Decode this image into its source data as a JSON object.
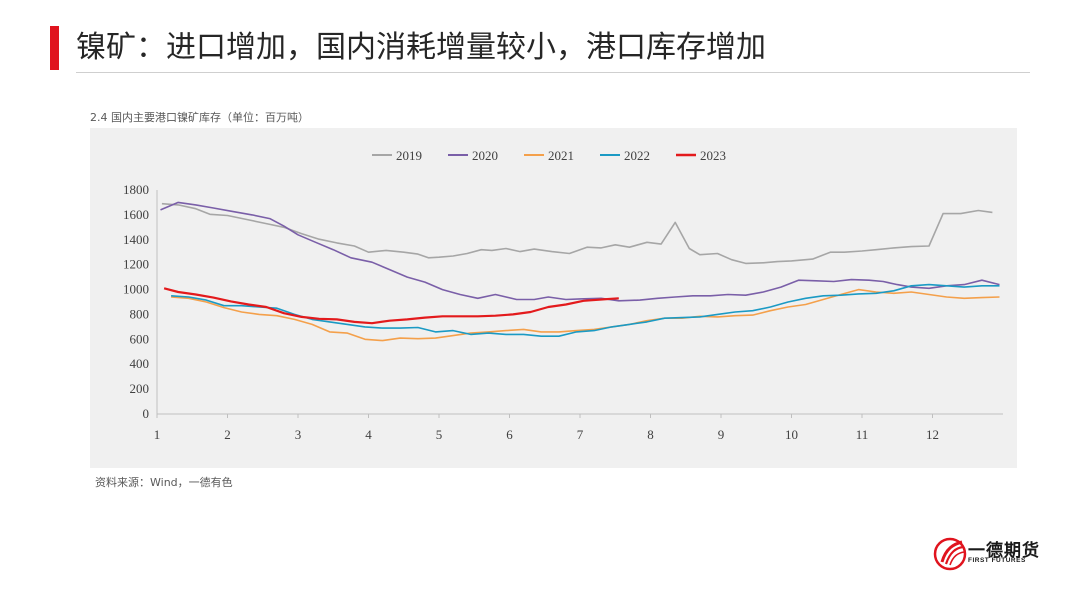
{
  "slide": {
    "title": "镍矿：进口增加，国内消耗增量较小，港口库存增加",
    "chart_caption": "2.4 国内主要港口镍矿库存（单位：百万吨）",
    "source": "资料来源：Wind，一德有色",
    "logo": {
      "name": "一德期货",
      "sub": "FIRST FUTURES"
    }
  },
  "chart_data": {
    "type": "line",
    "title": "2.4 国内主要港口镍矿库存（单位：百万吨）",
    "xlabel": "",
    "ylabel": "",
    "xlim": [
      1,
      13
    ],
    "ylim": [
      0,
      1800
    ],
    "x_ticks": [
      1,
      2,
      3,
      4,
      5,
      6,
      7,
      8,
      9,
      10,
      11,
      12
    ],
    "y_ticks": [
      0,
      200,
      400,
      600,
      800,
      1000,
      1200,
      1400,
      1600,
      1800
    ],
    "legend_position": "top-center",
    "grid": false,
    "series": [
      {
        "name": "2019",
        "color": "#a6a6a6",
        "x": [
          1.07,
          1.3,
          1.55,
          1.75,
          2,
          2.3,
          2.55,
          2.8,
          3.05,
          3.3,
          3.55,
          3.8,
          4,
          4.25,
          4.5,
          4.7,
          4.85,
          5,
          5.2,
          5.4,
          5.6,
          5.75,
          5.95,
          6.15,
          6.35,
          6.6,
          6.85,
          7.1,
          7.3,
          7.5,
          7.7,
          7.95,
          8.15,
          8.35,
          8.55,
          8.7,
          8.95,
          9.15,
          9.35,
          9.6,
          9.8,
          10.0,
          10.3,
          10.55,
          10.75,
          11.0,
          11.2,
          11.45,
          11.7,
          11.95,
          12.15,
          12.4,
          12.65,
          12.85
        ],
        "y": [
          1690,
          1680,
          1650,
          1605,
          1595,
          1560,
          1530,
          1500,
          1450,
          1405,
          1375,
          1350,
          1300,
          1315,
          1300,
          1285,
          1255,
          1260,
          1270,
          1290,
          1320,
          1315,
          1330,
          1305,
          1325,
          1305,
          1290,
          1340,
          1335,
          1360,
          1340,
          1380,
          1365,
          1540,
          1330,
          1280,
          1290,
          1240,
          1210,
          1215,
          1225,
          1230,
          1245,
          1300,
          1300,
          1310,
          1320,
          1335,
          1345,
          1350,
          1610,
          1610,
          1635,
          1620
        ]
      },
      {
        "name": "2020",
        "color": "#7a5fa8",
        "x": [
          1.05,
          1.3,
          1.55,
          1.8,
          2.05,
          2.35,
          2.6,
          2.8,
          3,
          3.25,
          3.5,
          3.75,
          4.05,
          4.3,
          4.55,
          4.8,
          5.05,
          5.3,
          5.55,
          5.8,
          6.1,
          6.35,
          6.55,
          6.8,
          7.0,
          7.3,
          7.55,
          7.85,
          8.1,
          8.35,
          8.6,
          8.85,
          9.1,
          9.35,
          9.6,
          9.85,
          10.1,
          10.35,
          10.6,
          10.85,
          11.1,
          11.3,
          11.5,
          11.7,
          11.95,
          12.2,
          12.45,
          12.7,
          12.95
        ],
        "y": [
          1640,
          1700,
          1680,
          1655,
          1630,
          1600,
          1570,
          1510,
          1440,
          1380,
          1320,
          1255,
          1220,
          1160,
          1100,
          1060,
          1000,
          960,
          930,
          960,
          920,
          920,
          940,
          920,
          925,
          930,
          910,
          915,
          930,
          940,
          950,
          950,
          960,
          955,
          980,
          1020,
          1075,
          1070,
          1065,
          1080,
          1075,
          1065,
          1040,
          1020,
          1010,
          1030,
          1040,
          1075,
          1040
        ]
      },
      {
        "name": "2021",
        "color": "#f4a04b",
        "x": [
          1.2,
          1.45,
          1.7,
          1.95,
          2.2,
          2.45,
          2.7,
          2.95,
          3.2,
          3.45,
          3.7,
          3.95,
          4.2,
          4.45,
          4.7,
          4.95,
          5.2,
          5.45,
          5.7,
          5.95,
          6.2,
          6.45,
          6.7,
          6.95,
          7.2,
          7.45,
          7.7,
          7.95,
          8.2,
          8.45,
          8.7,
          8.95,
          9.2,
          9.45,
          9.7,
          9.95,
          10.2,
          10.45,
          10.7,
          10.95,
          11.2,
          11.45,
          11.7,
          11.95,
          12.2,
          12.45,
          12.7,
          12.95
        ],
        "y": [
          940,
          930,
          900,
          855,
          820,
          800,
          790,
          760,
          720,
          660,
          650,
          600,
          590,
          610,
          605,
          610,
          630,
          650,
          660,
          670,
          680,
          660,
          660,
          670,
          680,
          700,
          720,
          750,
          770,
          770,
          785,
          780,
          790,
          795,
          830,
          860,
          880,
          920,
          960,
          1000,
          980,
          970,
          980,
          960,
          940,
          930,
          935,
          940
        ]
      },
      {
        "name": "2022",
        "color": "#1b9ac4",
        "x": [
          1.2,
          1.45,
          1.7,
          1.95,
          2.2,
          2.45,
          2.7,
          2.95,
          3.2,
          3.45,
          3.7,
          3.95,
          4.2,
          4.45,
          4.7,
          4.95,
          5.2,
          5.45,
          5.7,
          5.95,
          6.2,
          6.45,
          6.7,
          6.95,
          7.2,
          7.45,
          7.7,
          7.95,
          8.2,
          8.45,
          8.7,
          8.95,
          9.2,
          9.45,
          9.7,
          9.95,
          10.2,
          10.45,
          10.7,
          10.95,
          11.2,
          11.45,
          11.7,
          11.95,
          12.2,
          12.45,
          12.7,
          12.95
        ],
        "y": [
          950,
          940,
          915,
          870,
          870,
          860,
          850,
          800,
          760,
          740,
          720,
          700,
          690,
          690,
          695,
          660,
          670,
          640,
          650,
          640,
          640,
          625,
          625,
          660,
          670,
          700,
          720,
          740,
          770,
          775,
          780,
          800,
          820,
          830,
          860,
          900,
          930,
          950,
          955,
          965,
          970,
          990,
          1030,
          1040,
          1030,
          1020,
          1030,
          1030
        ]
      },
      {
        "name": "2023",
        "color": "#e31a1c",
        "x": [
          1.1,
          1.3,
          1.55,
          1.8,
          2.05,
          2.3,
          2.55,
          2.8,
          3.05,
          3.3,
          3.55,
          3.8,
          4.05,
          4.3,
          4.55,
          4.8,
          5.05,
          5.3,
          5.55,
          5.8,
          6.05,
          6.3,
          6.55,
          6.8,
          7.05,
          7.3,
          7.55
        ],
        "y": [
          1010,
          980,
          960,
          935,
          905,
          880,
          860,
          810,
          780,
          765,
          760,
          740,
          730,
          750,
          760,
          775,
          785,
          785,
          785,
          790,
          800,
          820,
          860,
          880,
          910,
          920,
          930
        ]
      }
    ]
  }
}
